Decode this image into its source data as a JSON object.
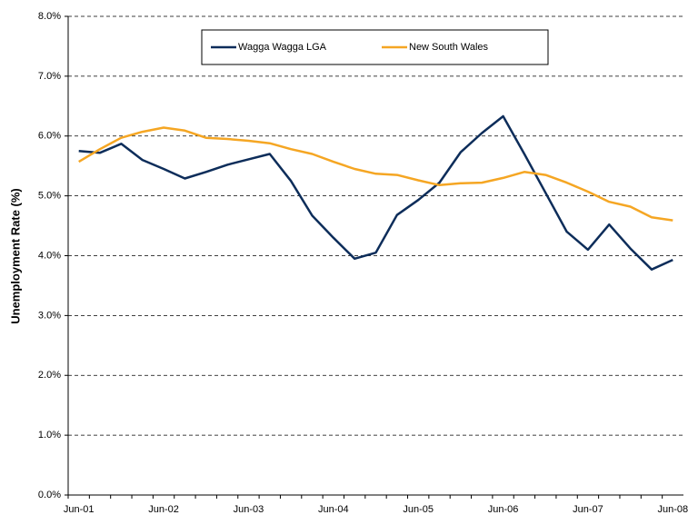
{
  "chart_data": {
    "type": "line",
    "y_label": "Unemployment Rate (%)",
    "categories": [
      "Jun-01",
      null,
      null,
      null,
      "Jun-02",
      null,
      null,
      null,
      "Jun-03",
      null,
      null,
      null,
      "Jun-04",
      null,
      null,
      null,
      "Jun-05",
      null,
      null,
      null,
      "Jun-06",
      null,
      null,
      null,
      "Jun-07",
      null,
      null,
      null,
      "Jun-08"
    ],
    "series": [
      {
        "name": "Wagga Wagga LGA",
        "color": "#0d2d5a",
        "values": [
          5.75,
          5.72,
          5.87,
          5.6,
          5.45,
          5.29,
          5.4,
          5.52,
          5.61,
          5.7,
          5.25,
          4.67,
          4.3,
          3.95,
          4.05,
          4.68,
          4.93,
          5.22,
          5.73,
          6.05,
          6.33,
          5.7,
          5.05,
          4.4,
          4.1,
          4.52,
          4.12,
          3.77,
          3.93
        ]
      },
      {
        "name": "New South Wales",
        "color": "#f5a623",
        "values": [
          5.57,
          5.78,
          5.97,
          6.07,
          6.14,
          6.09,
          5.97,
          5.95,
          5.92,
          5.88,
          5.78,
          5.7,
          5.57,
          5.45,
          5.37,
          5.35,
          5.26,
          5.18,
          5.21,
          5.22,
          5.3,
          5.4,
          5.35,
          5.22,
          5.07,
          4.9,
          4.82,
          4.64,
          4.59
        ]
      }
    ],
    "ylim": [
      0,
      8
    ],
    "yticks": [
      {
        "value": 0,
        "label": "0.0%"
      },
      {
        "value": 1,
        "label": "1.0%"
      },
      {
        "value": 2,
        "label": "2.0%"
      },
      {
        "value": 3,
        "label": "3.0%"
      },
      {
        "value": 4,
        "label": "4.0%"
      },
      {
        "value": 5,
        "label": "5.0%"
      },
      {
        "value": 6,
        "label": "6.0%"
      },
      {
        "value": 7,
        "label": "7.0%"
      },
      {
        "value": 8,
        "label": "8.0%"
      }
    ],
    "grid": true,
    "legend": "top"
  }
}
